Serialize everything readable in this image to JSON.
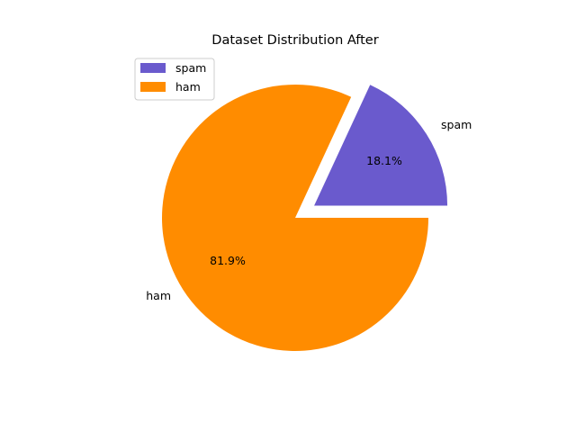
{
  "chart_data": {
    "type": "pie",
    "title": "Dataset Distribution After",
    "slices": [
      {
        "label": "spam",
        "value": 18.1,
        "pct_label": "18.1%",
        "color": "#6A5ACD",
        "exploded": true
      },
      {
        "label": "ham",
        "value": 81.9,
        "pct_label": "81.9%",
        "color": "#FF8C00",
        "exploded": false
      }
    ],
    "legend": {
      "position": "upper-left",
      "entries": [
        {
          "label": "spam",
          "color": "#6A5ACD"
        },
        {
          "label": "ham",
          "color": "#FF8C00"
        }
      ]
    }
  }
}
